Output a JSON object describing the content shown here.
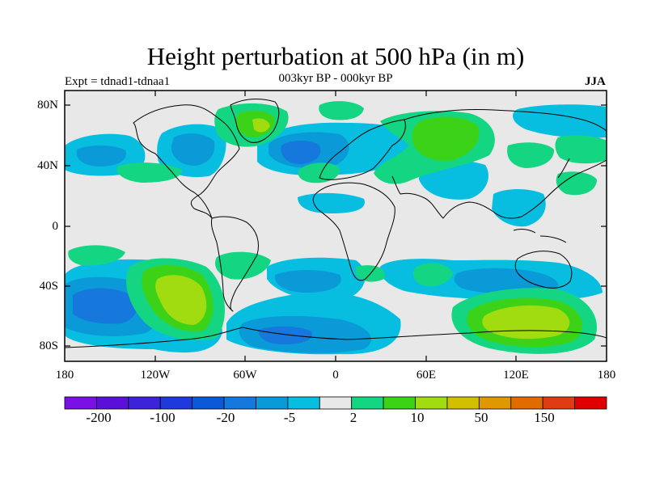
{
  "title": "Height perturbation at 500 hPa (in m)",
  "subtitle": "003kyr BP - 000kyr BP",
  "experiment": "Expt = tdnad1-tdnaa1",
  "season": "JJA",
  "map": {
    "projection": "cylindrical equidistant",
    "lon_range": [
      -180,
      180
    ],
    "lat_range": [
      -90,
      90
    ],
    "lat_labels": [
      "80N",
      "40N",
      "0",
      "40S",
      "80S"
    ],
    "lon_labels": [
      "180",
      "120W",
      "60W",
      "0",
      "60E",
      "120E",
      "180"
    ],
    "background_color": "#e8e8e8"
  },
  "colorbar": {
    "colors": [
      "#7a10e6",
      "#5a10d8",
      "#3c22d8",
      "#1e3adc",
      "#0a5ad8",
      "#1678dc",
      "#0a9ad8",
      "#08bee0",
      "#e8e8e8",
      "#14d682",
      "#3cd218",
      "#a0dc10",
      "#d2c000",
      "#e09800",
      "#e06c00",
      "#e03c14",
      "#e00000"
    ],
    "labels": [
      "-200",
      "-100",
      "-20",
      "-5",
      "2",
      "10",
      "50",
      "150"
    ]
  }
}
